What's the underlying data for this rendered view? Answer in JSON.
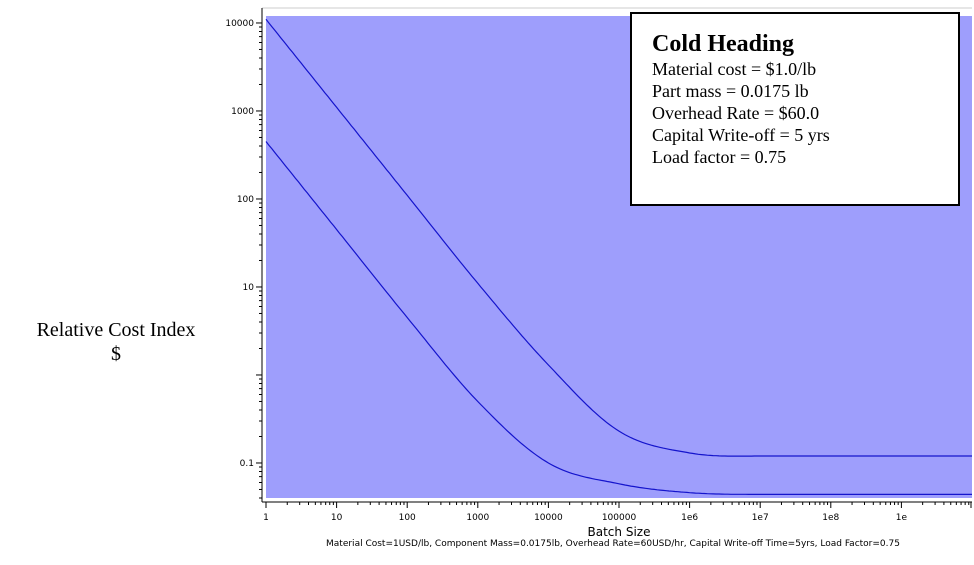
{
  "chart_data": {
    "type": "line",
    "x_scale": "log",
    "y_scale": "log",
    "xlim": [
      1,
      10000000000
    ],
    "ylim": [
      0.04,
      12000
    ],
    "x_ticks": [
      {
        "value": 1,
        "label": "1"
      },
      {
        "value": 10,
        "label": "10"
      },
      {
        "value": 100,
        "label": "100"
      },
      {
        "value": 1000,
        "label": "1000"
      },
      {
        "value": 10000,
        "label": "10000"
      },
      {
        "value": 100000,
        "label": "100000"
      },
      {
        "value": 1000000,
        "label": "1e6"
      },
      {
        "value": 10000000,
        "label": "1e7"
      },
      {
        "value": 100000000,
        "label": "1e8"
      },
      {
        "value": 1000000000,
        "label": "1e"
      }
    ],
    "y_ticks": [
      {
        "value": 0.1,
        "label": "0.1"
      },
      {
        "value": 1,
        "label": ""
      },
      {
        "value": 10,
        "label": "10"
      },
      {
        "value": 100,
        "label": "100"
      },
      {
        "value": 1000,
        "label": "1000"
      },
      {
        "value": 10000,
        "label": "10000"
      }
    ],
    "xlabel": "Batch Size",
    "ylabel_lines": [
      "Relative Cost Index",
      "$"
    ],
    "caption": "Material Cost=1USD/lb, Component Mass=0.0175lb, Overhead Rate=60USD/hr, Capital Write-off Time=5yrs, Load Factor=0.75",
    "series": [
      {
        "x": [
          1,
          10,
          100,
          1000,
          10000,
          100000,
          1000000,
          10000000,
          100000000,
          1000000000,
          10000000000
        ],
        "y": [
          11000,
          1100,
          110,
          11,
          1.3,
          0.23,
          0.13,
          0.12,
          0.12,
          0.12,
          0.12
        ]
      },
      {
        "x": [
          1,
          10,
          100,
          1000,
          10000,
          100000,
          1000000,
          10000000,
          100000000,
          1000000000,
          10000000000
        ],
        "y": [
          450,
          45,
          4.5,
          0.5,
          0.1,
          0.058,
          0.046,
          0.044,
          0.044,
          0.044,
          0.044
        ]
      }
    ],
    "band_color": "#9e9efc",
    "line_color": "#1414cc",
    "legend_placement": "top-right"
  },
  "info_box": {
    "title": "Cold Heading",
    "lines": [
      "Material cost = $1.0/lb",
      "Part mass = 0.0175 lb",
      "Overhead Rate = $60.0",
      "Capital Write-off = 5 yrs",
      "Load factor = 0.75"
    ]
  }
}
